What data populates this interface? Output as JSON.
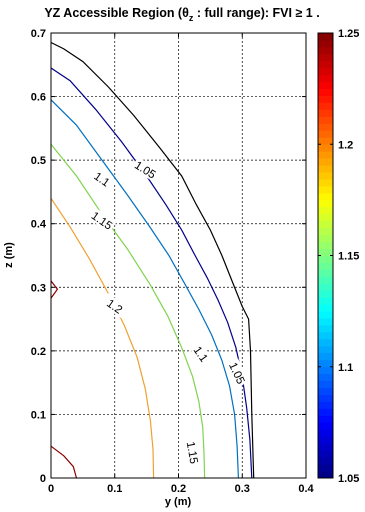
{
  "chart_data": {
    "type": "contour",
    "title": "YZ Accessible Region (θz : full range): FVI ≥ 1 .",
    "title_parts": {
      "prefix": "YZ Accessible Region (θ",
      "subscript": "z",
      "suffix": " : full range): FVI ≥ 1 ."
    },
    "xlabel": "y (m)",
    "ylabel": "z (m)",
    "xlim": [
      0,
      0.4
    ],
    "ylim": [
      0,
      0.7
    ],
    "xticks": [
      "0",
      "0.1",
      "0.2",
      "0.3",
      "0.4"
    ],
    "yticks": [
      "0",
      "0.1",
      "0.2",
      "0.3",
      "0.4",
      "0.5",
      "0.6",
      "0.7"
    ],
    "grid": true,
    "colorbar": {
      "ticks": [
        "1.05",
        "1.1",
        "1.15",
        "1.2",
        "1.25"
      ],
      "range": [
        1.05,
        1.25
      ],
      "colormap": "jet"
    },
    "contours": [
      {
        "level": 1.0,
        "color": "#000000",
        "points": [
          [
            0.0,
            0.685
          ],
          [
            0.02,
            0.675
          ],
          [
            0.05,
            0.655
          ],
          [
            0.09,
            0.615
          ],
          [
            0.13,
            0.57
          ],
          [
            0.17,
            0.52
          ],
          [
            0.205,
            0.475
          ],
          [
            0.228,
            0.43
          ],
          [
            0.25,
            0.39
          ],
          [
            0.268,
            0.35
          ],
          [
            0.284,
            0.31
          ],
          [
            0.3,
            0.27
          ],
          [
            0.31,
            0.25
          ],
          [
            0.313,
            0.2
          ],
          [
            0.315,
            0.1
          ],
          [
            0.318,
            0.0
          ]
        ]
      },
      {
        "level": 1.05,
        "color": "#00008b",
        "points": [
          [
            0.0,
            0.645
          ],
          [
            0.03,
            0.625
          ],
          [
            0.07,
            0.58
          ],
          [
            0.11,
            0.53
          ],
          [
            0.15,
            0.475
          ],
          [
            0.18,
            0.43
          ],
          [
            0.205,
            0.39
          ],
          [
            0.226,
            0.35
          ],
          [
            0.245,
            0.315
          ],
          [
            0.262,
            0.28
          ],
          [
            0.277,
            0.245
          ],
          [
            0.29,
            0.205
          ],
          [
            0.3,
            0.16
          ],
          [
            0.307,
            0.11
          ],
          [
            0.312,
            0.06
          ],
          [
            0.315,
            0.0
          ]
        ]
      },
      {
        "level": 1.1,
        "color": "#0070c0",
        "points": [
          [
            0.0,
            0.595
          ],
          [
            0.04,
            0.555
          ],
          [
            0.08,
            0.5
          ],
          [
            0.12,
            0.445
          ],
          [
            0.155,
            0.395
          ],
          [
            0.185,
            0.35
          ],
          [
            0.21,
            0.305
          ],
          [
            0.232,
            0.265
          ],
          [
            0.252,
            0.225
          ],
          [
            0.268,
            0.185
          ],
          [
            0.28,
            0.145
          ],
          [
            0.288,
            0.1
          ],
          [
            0.292,
            0.05
          ],
          [
            0.294,
            0.0
          ]
        ]
      },
      {
        "level": 1.15,
        "color": "#7fd34e",
        "points": [
          [
            0.0,
            0.525
          ],
          [
            0.04,
            0.475
          ],
          [
            0.08,
            0.415
          ],
          [
            0.12,
            0.36
          ],
          [
            0.155,
            0.305
          ],
          [
            0.183,
            0.255
          ],
          [
            0.205,
            0.205
          ],
          [
            0.222,
            0.16
          ],
          [
            0.232,
            0.12
          ],
          [
            0.238,
            0.08
          ],
          [
            0.24,
            0.04
          ],
          [
            0.241,
            0.0
          ]
        ]
      },
      {
        "level": 1.2,
        "color": "#f0a030",
        "points": [
          [
            0.0,
            0.44
          ],
          [
            0.03,
            0.395
          ],
          [
            0.06,
            0.345
          ],
          [
            0.09,
            0.29
          ],
          [
            0.115,
            0.24
          ],
          [
            0.135,
            0.19
          ],
          [
            0.148,
            0.14
          ],
          [
            0.156,
            0.09
          ],
          [
            0.16,
            0.045
          ],
          [
            0.161,
            0.0
          ]
        ]
      },
      {
        "level": 1.25,
        "color": "#8b0000",
        "points": [
          [
            0.0,
            0.31
          ],
          [
            0.01,
            0.297
          ],
          [
            0.0,
            0.283
          ]
        ]
      },
      {
        "level": 1.25,
        "color": "#8b0000",
        "points": [
          [
            0.0,
            0.05
          ],
          [
            0.02,
            0.035
          ],
          [
            0.035,
            0.018
          ],
          [
            0.04,
            0.0
          ]
        ]
      }
    ],
    "contour_labels": [
      {
        "text": "1.05",
        "x": 0.148,
        "y": 0.485,
        "angle": 32
      },
      {
        "text": "1.1",
        "x": 0.08,
        "y": 0.47,
        "angle": 35
      },
      {
        "text": "1.15",
        "x": 0.08,
        "y": 0.405,
        "angle": 35
      },
      {
        "text": "1.2",
        "x": 0.1,
        "y": 0.27,
        "angle": 35
      },
      {
        "text": "1.1",
        "x": 0.235,
        "y": 0.195,
        "angle": 55
      },
      {
        "text": "1.05",
        "x": 0.292,
        "y": 0.165,
        "angle": 65
      },
      {
        "text": "1.15",
        "x": 0.222,
        "y": 0.04,
        "angle": 80
      }
    ]
  }
}
